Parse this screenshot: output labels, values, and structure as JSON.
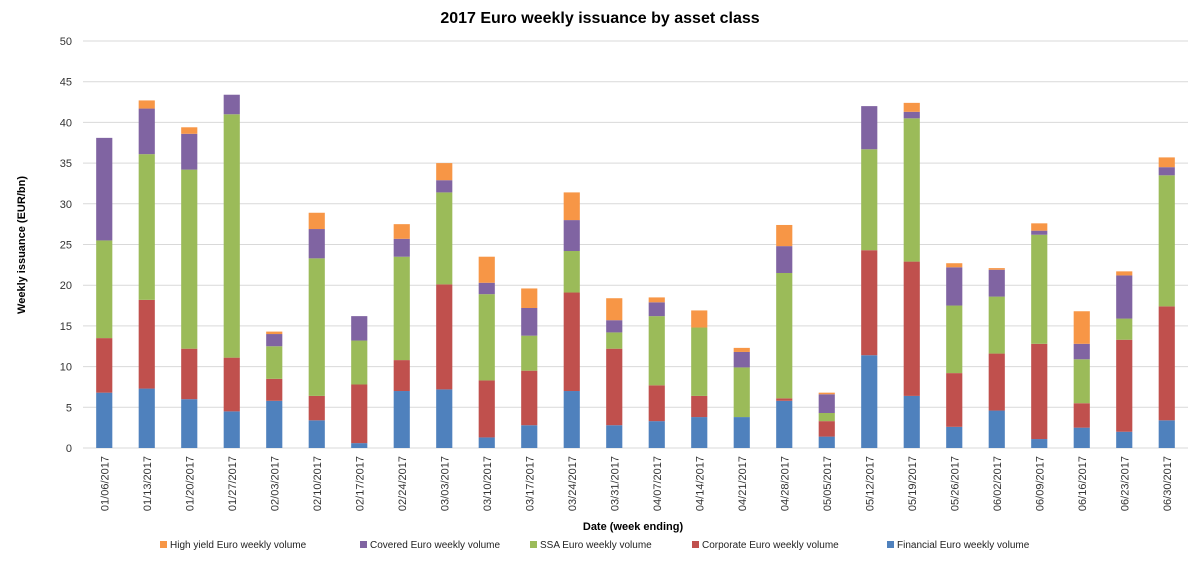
{
  "chart_data": {
    "type": "bar",
    "stacked": true,
    "title": "2017 Euro weekly issuance by asset class",
    "xlabel": "Date (week ending)",
    "ylabel": "Weekly issuance  (EUR/bn)",
    "ylim": [
      0,
      50
    ],
    "yticks": [
      0,
      5,
      10,
      15,
      20,
      25,
      30,
      35,
      40,
      45,
      50
    ],
    "grid": true,
    "legend_position": "bottom",
    "categories": [
      "01/06/2017",
      "01/13/2017",
      "01/20/2017",
      "01/27/2017",
      "02/03/2017",
      "02/10/2017",
      "02/17/2017",
      "02/24/2017",
      "03/03/2017",
      "03/10/2017",
      "03/17/2017",
      "03/24/2017",
      "03/31/2017",
      "04/07/2017",
      "04/14/2017",
      "04/21/2017",
      "04/28/2017",
      "05/05/2017",
      "05/12/2017",
      "05/19/2017",
      "05/26/2017",
      "06/02/2017",
      "06/09/2017",
      "06/16/2017",
      "06/23/2017",
      "06/30/2017"
    ],
    "series": [
      {
        "name": "Financial Euro weekly volume",
        "color": "#4f81bd",
        "values": [
          6.8,
          7.3,
          6.0,
          4.5,
          5.8,
          3.4,
          0.6,
          7.0,
          7.2,
          1.3,
          2.8,
          7.0,
          2.8,
          3.3,
          3.8,
          3.8,
          5.8,
          1.4,
          11.4,
          6.4,
          2.6,
          4.6,
          1.1,
          2.5,
          2.0,
          3.4
        ]
      },
      {
        "name": "Corporate Euro weekly volume",
        "color": "#c0504d",
        "values": [
          6.7,
          10.9,
          6.2,
          6.6,
          2.7,
          3.0,
          7.2,
          3.8,
          12.9,
          7.0,
          6.7,
          12.1,
          9.4,
          4.4,
          2.6,
          0.0,
          0.3,
          1.9,
          12.9,
          16.5,
          6.6,
          7.0,
          11.7,
          3.0,
          11.3,
          14.0
        ]
      },
      {
        "name": "SSA Euro weekly volume",
        "color": "#9bbb59",
        "values": [
          12.0,
          17.9,
          22.0,
          29.9,
          4.0,
          16.9,
          5.4,
          12.7,
          11.3,
          10.6,
          4.3,
          5.1,
          2.0,
          8.5,
          8.4,
          6.1,
          15.4,
          1.0,
          12.4,
          17.6,
          8.3,
          7.0,
          13.4,
          5.4,
          2.6,
          16.1
        ]
      },
      {
        "name": "Covered Euro weekly volume",
        "color": "#8064a2",
        "values": [
          12.6,
          5.6,
          4.4,
          2.4,
          1.5,
          3.6,
          3.0,
          2.2,
          1.5,
          1.4,
          3.4,
          3.8,
          1.5,
          1.7,
          0.0,
          1.9,
          3.3,
          2.3,
          5.3,
          0.8,
          4.7,
          3.3,
          0.5,
          1.9,
          5.3,
          1.0
        ]
      },
      {
        "name": "High yield Euro weekly volume",
        "color": "#f79646",
        "values": [
          0.0,
          1.0,
          0.8,
          0.0,
          0.3,
          2.0,
          0.0,
          1.8,
          2.1,
          3.2,
          2.4,
          3.4,
          2.7,
          0.6,
          2.1,
          0.5,
          2.6,
          0.2,
          0.0,
          1.1,
          0.5,
          0.2,
          0.9,
          4.0,
          0.5,
          1.2
        ]
      }
    ],
    "legend_order": [
      4,
      3,
      2,
      1,
      0
    ]
  }
}
